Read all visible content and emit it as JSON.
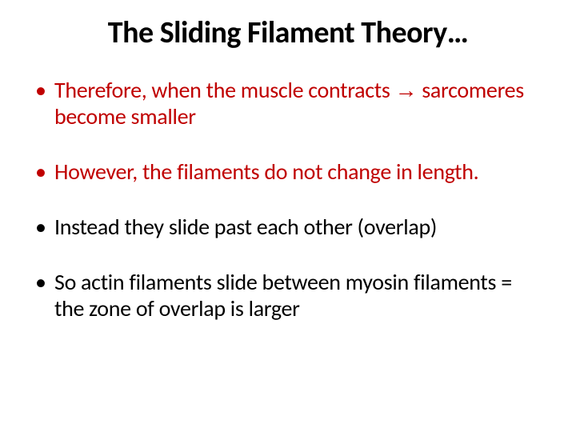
{
  "slide": {
    "title": "The Sliding Filament Theory…",
    "bullets": [
      {
        "pre": "Therefore, when the muscle contracts ",
        "arrow": "→",
        "post": " sarcomeres become smaller",
        "color": "#c00000"
      },
      {
        "text": "However, the filaments do not change in length.",
        "color": "#c00000"
      },
      {
        "text": "Instead they slide past each other (overlap)",
        "color": "#000000"
      },
      {
        "text": "So actin filaments slide between myosin filaments = the zone of overlap is larger",
        "color": "#000000"
      }
    ]
  },
  "colors": {
    "title": "#000000",
    "red": "#c00000",
    "black": "#000000",
    "background": "#ffffff"
  },
  "typography": {
    "title_fontsize": 38,
    "title_weight": 700,
    "bullet_fontsize": 28,
    "font_family": "Calibri"
  }
}
